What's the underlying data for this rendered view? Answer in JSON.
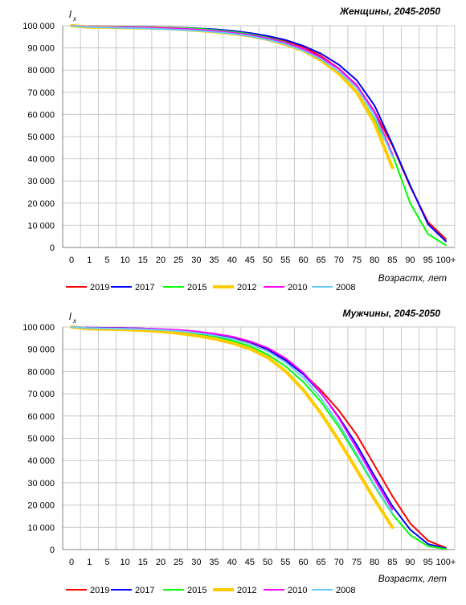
{
  "chart_data": [
    {
      "type": "line",
      "title": "Женщины, 2045-2050",
      "ylabel_main": "l",
      "ylabel_sub": "x",
      "xlabel": "Возрастх, лет",
      "categories": [
        "0",
        "1",
        "5",
        "10",
        "15",
        "20",
        "25",
        "30",
        "35",
        "40",
        "45",
        "50",
        "55",
        "60",
        "65",
        "70",
        "75",
        "80",
        "85",
        "90",
        "95",
        "100+"
      ],
      "yticks": [
        "0",
        "10 000",
        "20 000",
        "30 000",
        "40 000",
        "50 000",
        "60 000",
        "70 000",
        "80 000",
        "90 000",
        "100 000"
      ],
      "ylim": [
        0,
        100000
      ],
      "grid": true,
      "legend_position": "bottom",
      "series": [
        {
          "name": "2019",
          "color": "#ff0000",
          "width": 2,
          "values": [
            100000,
            99700,
            99600,
            99500,
            99400,
            99300,
            99100,
            98800,
            98300,
            97600,
            96700,
            95300,
            93200,
            90400,
            86300,
            80700,
            73200,
            61200,
            46000,
            27500,
            11500,
            3800
          ]
        },
        {
          "name": "2017",
          "color": "#0000ff",
          "width": 2,
          "values": [
            100000,
            99800,
            99700,
            99600,
            99500,
            99300,
            99100,
            98800,
            98400,
            97700,
            96700,
            95400,
            93600,
            90900,
            87400,
            82400,
            75400,
            64000,
            46500,
            28000,
            10500,
            2800
          ]
        },
        {
          "name": "2015",
          "color": "#00ff00",
          "width": 2,
          "values": [
            100000,
            99700,
            99600,
            99500,
            99400,
            99200,
            99000,
            98700,
            98100,
            97300,
            96200,
            94600,
            92500,
            89400,
            85100,
            79000,
            70500,
            57500,
            42000,
            20000,
            6000,
            1000
          ]
        },
        {
          "name": "2012",
          "color": "#ffcc00",
          "width": 4,
          "values": [
            100000,
            99400,
            99300,
            99100,
            99000,
            98800,
            98400,
            97900,
            97300,
            96500,
            95400,
            93800,
            91600,
            88800,
            84400,
            78400,
            70000,
            56000,
            36000,
            null,
            null,
            null
          ]
        },
        {
          "name": "2010",
          "color": "#ff00ff",
          "width": 2,
          "values": [
            100000,
            99500,
            99400,
            99300,
            99200,
            98900,
            98700,
            98300,
            97700,
            96900,
            95800,
            94300,
            92300,
            89500,
            85700,
            80500,
            73000,
            61000,
            42000,
            null,
            null,
            null
          ]
        },
        {
          "name": "2008",
          "color": "#66ccff",
          "width": 2,
          "values": [
            100000,
            99400,
            99200,
            99000,
            98800,
            98500,
            98200,
            97800,
            97200,
            96400,
            95300,
            93700,
            91700,
            88800,
            84900,
            79400,
            72000,
            59500,
            41000,
            null,
            null,
            null
          ]
        }
      ]
    },
    {
      "type": "line",
      "title": "Мужчины, 2045-2050",
      "ylabel_main": "l",
      "ylabel_sub": "x",
      "xlabel": "Возрастх, лет",
      "categories": [
        "0",
        "1",
        "5",
        "10",
        "15",
        "20",
        "25",
        "30",
        "35",
        "40",
        "45",
        "50",
        "55",
        "60",
        "65",
        "70",
        "75",
        "80",
        "85",
        "90",
        "95",
        "100+"
      ],
      "yticks": [
        "0",
        "10 000",
        "20 000",
        "30 000",
        "40 000",
        "50 000",
        "60 000",
        "70 000",
        "80 000",
        "90 000",
        "100 000"
      ],
      "ylim": [
        0,
        100000
      ],
      "grid": true,
      "legend_position": "bottom",
      "series": [
        {
          "name": "2019",
          "color": "#ff0000",
          "width": 2,
          "values": [
            100000,
            99700,
            99600,
            99500,
            99300,
            99000,
            98600,
            97900,
            96900,
            95400,
            93100,
            89800,
            85000,
            79100,
            71500,
            62500,
            51500,
            37800,
            24000,
            11800,
            4000,
            800
          ]
        },
        {
          "name": "2017",
          "color": "#0000ff",
          "width": 2,
          "values": [
            100000,
            99700,
            99600,
            99500,
            99300,
            99000,
            98600,
            97900,
            96900,
            95500,
            93400,
            90000,
            85100,
            78800,
            70300,
            59500,
            47000,
            33000,
            19500,
            9000,
            2500,
            500
          ]
        },
        {
          "name": "2015",
          "color": "#00ff00",
          "width": 2,
          "values": [
            100000,
            99600,
            99400,
            99200,
            98900,
            98500,
            97900,
            97000,
            95700,
            93900,
            91400,
            87600,
            82400,
            75300,
            66300,
            55000,
            42000,
            28500,
            16000,
            6500,
            1500,
            300
          ]
        },
        {
          "name": "2012",
          "color": "#ffcc00",
          "width": 4,
          "values": [
            100000,
            99200,
            99000,
            98800,
            98500,
            98000,
            97200,
            96100,
            94700,
            92800,
            90200,
            86300,
            80200,
            71700,
            61200,
            49000,
            35800,
            22500,
            10000,
            null,
            null,
            null
          ]
        },
        {
          "name": "2010",
          "color": "#ff00ff",
          "width": 2,
          "values": [
            100000,
            99600,
            99500,
            99400,
            99300,
            99100,
            98700,
            98000,
            97000,
            95700,
            93600,
            90600,
            86000,
            79500,
            70500,
            59000,
            45500,
            31500,
            18000,
            null,
            null,
            null
          ]
        },
        {
          "name": "2008",
          "color": "#66ccff",
          "width": 2,
          "values": [
            100000,
            99500,
            99400,
            99200,
            99000,
            98700,
            98200,
            97400,
            96200,
            94700,
            92400,
            89100,
            84200,
            77300,
            68000,
            56500,
            43000,
            29000,
            16500,
            null,
            null,
            null
          ]
        }
      ]
    }
  ]
}
